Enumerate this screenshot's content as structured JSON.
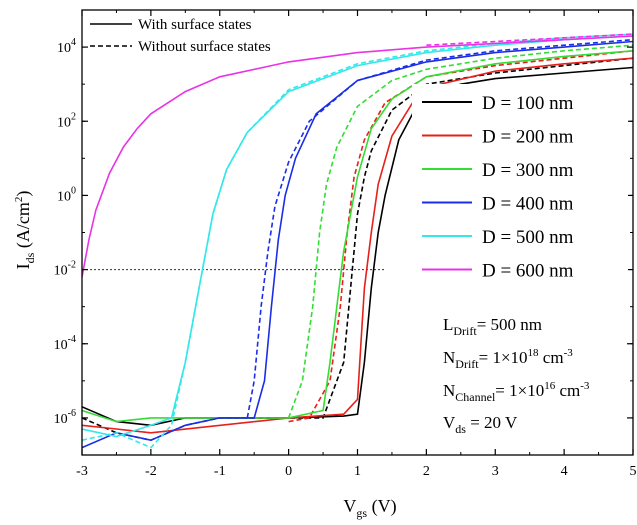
{
  "chart_data": {
    "type": "line",
    "xlabel": "V",
    "xlabel_sub": "gs",
    "xlabel_unit": " (V)",
    "ylabel": "I",
    "ylabel_sub": "ds",
    "ylabel_unit": " (A/cm",
    "ylabel_sup": "2",
    "ylabel_close": ")",
    "xlim": [
      -3,
      5
    ],
    "ylim_exp": [
      -7,
      5
    ],
    "yscale": "log",
    "x_ticks": [
      "-3",
      "-2",
      "-1",
      "0",
      "1",
      "2",
      "3",
      "4",
      "5"
    ],
    "y_ticks": [
      {
        "exp": -6,
        "label": "10",
        "sup": "-6"
      },
      {
        "exp": -4,
        "label": "10",
        "sup": "-4"
      },
      {
        "exp": -2,
        "label": "10",
        "sup": "-2"
      },
      {
        "exp": 0,
        "label": "10",
        "sup": "0"
      },
      {
        "exp": 2,
        "label": "10",
        "sup": "2"
      },
      {
        "exp": 4,
        "label": "10",
        "sup": "4"
      }
    ],
    "reference_line": {
      "y_exp": -2,
      "x": [
        -3,
        1.4
      ],
      "style": "dotted"
    },
    "style_legend": [
      {
        "label": "With surface states",
        "style": "solid"
      },
      {
        "label": "Without surface states",
        "style": "dashed"
      }
    ],
    "series": [
      {
        "name": "D = 100 nm",
        "color": "#000000",
        "solid": [
          [
            -3,
            -5.7
          ],
          [
            -2.5,
            -6.1
          ],
          [
            -2,
            -6.2
          ],
          [
            -1.5,
            -6
          ],
          [
            -1,
            -6
          ],
          [
            0,
            -6
          ],
          [
            0.8,
            -5.95
          ],
          [
            1.0,
            -5.9
          ],
          [
            1.1,
            -4.5
          ],
          [
            1.2,
            -2.5
          ],
          [
            1.3,
            -1
          ],
          [
            1.4,
            0
          ],
          [
            1.6,
            1.5
          ],
          [
            1.8,
            2.2
          ],
          [
            2.0,
            2.7
          ],
          [
            2.5,
            3.0
          ],
          [
            3,
            3.15
          ],
          [
            4,
            3.3
          ],
          [
            5,
            3.45
          ]
        ],
        "dashed": [
          [
            -3,
            -6.0
          ],
          [
            -2.5,
            -6.4
          ],
          [
            -2,
            -6.6
          ],
          [
            -1.5,
            -6.2
          ],
          [
            -1,
            -6
          ],
          [
            0.5,
            -6
          ],
          [
            0.8,
            -4.5
          ],
          [
            0.9,
            -2.5
          ],
          [
            1.0,
            -0.5
          ],
          [
            1.1,
            0.5
          ],
          [
            1.2,
            1.2
          ],
          [
            1.5,
            2.3
          ],
          [
            2,
            3.0
          ],
          [
            3,
            3.3
          ],
          [
            4,
            3.5
          ],
          [
            5,
            3.7
          ]
        ]
      },
      {
        "name": "D = 200 nm",
        "color": "#e8201a",
        "solid": [
          [
            -3,
            -6.2
          ],
          [
            -2.5,
            -6.3
          ],
          [
            -2,
            -6.4
          ],
          [
            0,
            -6
          ],
          [
            0.8,
            -5.9
          ],
          [
            1.0,
            -5.5
          ],
          [
            1.05,
            -4
          ],
          [
            1.1,
            -2.5
          ],
          [
            1.2,
            -1
          ],
          [
            1.3,
            0.3
          ],
          [
            1.5,
            1.6
          ],
          [
            1.8,
            2.5
          ],
          [
            2.2,
            3.0
          ],
          [
            3,
            3.35
          ],
          [
            4,
            3.55
          ],
          [
            5,
            3.7
          ]
        ],
        "dashed": [
          [
            0,
            -6.1
          ],
          [
            0.3,
            -6
          ],
          [
            0.6,
            -5
          ],
          [
            0.75,
            -3
          ],
          [
            0.85,
            -1
          ],
          [
            0.95,
            0.5
          ],
          [
            1.1,
            1.5
          ],
          [
            1.4,
            2.5
          ],
          [
            2,
            3.2
          ],
          [
            3,
            3.5
          ],
          [
            4,
            3.7
          ],
          [
            5,
            3.9
          ]
        ]
      },
      {
        "name": "D = 300 nm",
        "color": "#33dd33",
        "solid": [
          [
            -3,
            -5.8
          ],
          [
            -2.5,
            -6.1
          ],
          [
            -2,
            -6
          ],
          [
            -1,
            -6
          ],
          [
            0,
            -6
          ],
          [
            0.5,
            -5.8
          ],
          [
            0.6,
            -4.5
          ],
          [
            0.7,
            -3
          ],
          [
            0.8,
            -1.5
          ],
          [
            0.9,
            -0.5
          ],
          [
            1.0,
            0.5
          ],
          [
            1.2,
            1.8
          ],
          [
            1.5,
            2.6
          ],
          [
            2,
            3.2
          ],
          [
            3,
            3.55
          ],
          [
            4,
            3.75
          ],
          [
            5,
            3.9
          ]
        ],
        "dashed": [
          [
            0,
            -6.0
          ],
          [
            0.2,
            -5
          ],
          [
            0.35,
            -3
          ],
          [
            0.45,
            -1
          ],
          [
            0.55,
            0.3
          ],
          [
            0.7,
            1.3
          ],
          [
            1,
            2.4
          ],
          [
            1.5,
            3.1
          ],
          [
            2,
            3.4
          ],
          [
            3,
            3.7
          ],
          [
            4,
            3.9
          ],
          [
            5,
            4.05
          ]
        ]
      },
      {
        "name": "D = 400 nm",
        "color": "#1a2ee8",
        "solid": [
          [
            -3,
            -6.8
          ],
          [
            -2.5,
            -6.4
          ],
          [
            -2,
            -6.6
          ],
          [
            -1.5,
            -6.2
          ],
          [
            -1,
            -6
          ],
          [
            -0.5,
            -6
          ],
          [
            -0.35,
            -5
          ],
          [
            -0.25,
            -3
          ],
          [
            -0.15,
            -1.2
          ],
          [
            -0.05,
            0
          ],
          [
            0.1,
            1
          ],
          [
            0.4,
            2.2
          ],
          [
            1,
            3.1
          ],
          [
            2,
            3.6
          ],
          [
            3,
            3.85
          ],
          [
            4,
            4.0
          ],
          [
            5,
            4.15
          ]
        ],
        "dashed": [
          [
            -0.6,
            -6
          ],
          [
            -0.5,
            -5
          ],
          [
            -0.4,
            -3
          ],
          [
            -0.3,
            -1.5
          ],
          [
            -0.2,
            -0.3
          ],
          [
            0,
            0.9
          ],
          [
            0.3,
            2.0
          ],
          [
            1,
            3.1
          ],
          [
            2,
            3.65
          ],
          [
            3,
            3.9
          ],
          [
            4,
            4.05
          ],
          [
            5,
            4.2
          ]
        ]
      },
      {
        "name": "D = 500 nm",
        "color": "#33e8e8",
        "solid": [
          [
            -3,
            -6.3
          ],
          [
            -2.5,
            -6.5
          ],
          [
            -2,
            -6.2
          ],
          [
            -1.7,
            -6
          ],
          [
            -1.5,
            -4.5
          ],
          [
            -1.35,
            -3
          ],
          [
            -1.25,
            -2
          ],
          [
            -1.1,
            -0.5
          ],
          [
            -0.9,
            0.7
          ],
          [
            -0.6,
            1.7
          ],
          [
            0,
            2.8
          ],
          [
            1,
            3.5
          ],
          [
            2,
            3.85
          ],
          [
            3,
            4.05
          ],
          [
            4,
            4.2
          ],
          [
            5,
            4.3
          ]
        ],
        "dashed": [
          [
            -3,
            -6.6
          ],
          [
            -2.5,
            -6.4
          ],
          [
            -2,
            -6.8
          ],
          [
            -1.7,
            -6.2
          ],
          [
            -1.5,
            -4.5
          ],
          [
            -1.35,
            -3
          ],
          [
            -1.25,
            -2
          ],
          [
            -1.1,
            -0.5
          ],
          [
            -0.9,
            0.7
          ],
          [
            -0.6,
            1.7
          ],
          [
            0,
            2.85
          ],
          [
            1,
            3.55
          ],
          [
            2,
            3.9
          ],
          [
            3,
            4.1
          ],
          [
            4,
            4.25
          ],
          [
            5,
            4.35
          ]
        ]
      },
      {
        "name": "D = 600 nm",
        "color": "#e833e8",
        "solid": [
          [
            -3,
            -2.2
          ],
          [
            -2.9,
            -1.2
          ],
          [
            -2.8,
            -0.4
          ],
          [
            -2.6,
            0.6
          ],
          [
            -2.4,
            1.3
          ],
          [
            -2.2,
            1.8
          ],
          [
            -2,
            2.2
          ],
          [
            -1.5,
            2.8
          ],
          [
            -1,
            3.2
          ],
          [
            0,
            3.6
          ],
          [
            1,
            3.85
          ],
          [
            2,
            4.0
          ],
          [
            3,
            4.1
          ],
          [
            4,
            4.2
          ],
          [
            5,
            4.3
          ]
        ],
        "dashed": [
          [
            2,
            4.05
          ],
          [
            3,
            4.15
          ],
          [
            4,
            4.25
          ],
          [
            5,
            4.35
          ]
        ]
      }
    ],
    "annotations": [
      {
        "base": "L",
        "sub": "Drift",
        "rest": "= 500 nm"
      },
      {
        "base": "N",
        "sub": "Drift",
        "rest": "=  1×10",
        "sup": "18",
        "tail": " cm",
        "sup2": "-3"
      },
      {
        "base": "N",
        "sub": "Channel",
        "rest": "= 1×10",
        "sup": "16",
        "tail": " cm",
        "sup2": "-3"
      },
      {
        "base": "V",
        "sub": "ds",
        "rest": " = 20 V"
      }
    ]
  }
}
